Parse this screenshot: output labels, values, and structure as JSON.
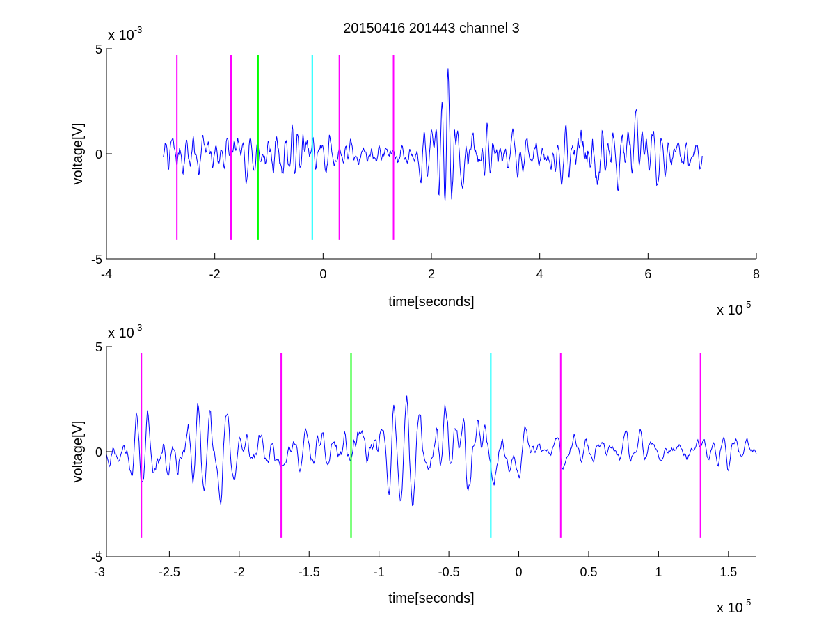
{
  "chart_data": [
    {
      "type": "line",
      "title": "20150416 201443 channel 3",
      "xlabel": "time[seconds]",
      "ylabel": "voltage[V]",
      "x_scale_label": "x 10",
      "x_scale_exponent": "-5",
      "y_scale_label": "x 10",
      "y_scale_exponent": "-3",
      "xlim": [
        -4,
        8
      ],
      "ylim": [
        -5,
        5
      ],
      "xticks": [
        -4,
        -2,
        0,
        2,
        4,
        6,
        8
      ],
      "xtick_labels": [
        "-4",
        "-2",
        "0",
        "2",
        "4",
        "6",
        "8"
      ],
      "yticks": [
        -5,
        0,
        5
      ],
      "ytick_labels": [
        "-5",
        "0",
        "5"
      ],
      "series_color": "#0000ff",
      "signal": {
        "x_start": -2.95,
        "x_end": 7.0,
        "points": 900,
        "seed": 7,
        "envelope": [
          [
            -2.95,
            1.0
          ],
          [
            -2.5,
            1.3
          ],
          [
            -2.0,
            1.1
          ],
          [
            -1.5,
            0.9
          ],
          [
            -1.0,
            1.25
          ],
          [
            -0.5,
            1.5
          ],
          [
            0.0,
            1.0
          ],
          [
            0.5,
            0.7
          ],
          [
            1.0,
            0.65
          ],
          [
            1.5,
            0.8
          ],
          [
            2.0,
            1.2
          ],
          [
            2.3,
            2.6
          ],
          [
            2.6,
            1.6
          ],
          [
            3.0,
            1.3
          ],
          [
            3.5,
            1.0
          ],
          [
            4.0,
            0.8
          ],
          [
            4.5,
            1.1
          ],
          [
            4.9,
            2.8
          ],
          [
            5.2,
            1.8
          ],
          [
            5.6,
            1.4
          ],
          [
            6.0,
            1.2
          ],
          [
            6.5,
            0.9
          ],
          [
            7.0,
            0.8
          ]
        ]
      },
      "markers": [
        {
          "x": -2.7,
          "color": "#ff00ff"
        },
        {
          "x": -1.7,
          "color": "#ff00ff"
        },
        {
          "x": -1.2,
          "color": "#00ff00"
        },
        {
          "x": -0.2,
          "color": "#00ffff"
        },
        {
          "x": 0.3,
          "color": "#ff00ff"
        },
        {
          "x": 1.3,
          "color": "#ff00ff"
        }
      ],
      "marker_range": [
        -4.1,
        4.7
      ]
    },
    {
      "type": "line",
      "xlabel": "time[seconds]",
      "ylabel": "voltage[V]",
      "x_scale_label": "x 10",
      "x_scale_exponent": "-5",
      "y_scale_label": "x 10",
      "y_scale_exponent": "-3",
      "xlim": [
        -2.95,
        1.7
      ],
      "ylim": [
        -5,
        5
      ],
      "xticks": [
        -3,
        -2.5,
        -2,
        -1.5,
        -1,
        -0.5,
        0,
        0.5,
        1,
        1.5
      ],
      "xtick_labels": [
        "-3",
        "-2.5",
        "-2",
        "-1.5",
        "-1",
        "-0.5",
        "0",
        "0.5",
        "1",
        "1.5"
      ],
      "yticks": [
        -5,
        0,
        5
      ],
      "ytick_labels": [
        "-5",
        "0",
        "5"
      ],
      "series_color": "#0000ff",
      "signal": {
        "x_start": -2.95,
        "x_end": 1.7,
        "points": 700,
        "seed": 11,
        "envelope": [
          [
            -2.95,
            0.9
          ],
          [
            -2.7,
            1.6
          ],
          [
            -2.5,
            1.3
          ],
          [
            -2.3,
            2.2
          ],
          [
            -2.1,
            1.8
          ],
          [
            -1.8,
            1.0
          ],
          [
            -1.5,
            0.9
          ],
          [
            -1.2,
            1.6
          ],
          [
            -1.0,
            1.4
          ],
          [
            -0.7,
            1.8
          ],
          [
            -0.4,
            2.4
          ],
          [
            -0.2,
            1.5
          ],
          [
            0.0,
            1.2
          ],
          [
            0.3,
            0.8
          ],
          [
            0.6,
            0.7
          ],
          [
            0.9,
            0.8
          ],
          [
            1.2,
            0.7
          ],
          [
            1.5,
            0.8
          ],
          [
            1.7,
            0.6
          ]
        ]
      },
      "markers": [
        {
          "x": -2.7,
          "color": "#ff00ff"
        },
        {
          "x": -1.7,
          "color": "#ff00ff"
        },
        {
          "x": -1.2,
          "color": "#00ff00"
        },
        {
          "x": -0.2,
          "color": "#00ffff"
        },
        {
          "x": 0.3,
          "color": "#ff00ff"
        },
        {
          "x": 1.3,
          "color": "#ff00ff"
        }
      ],
      "marker_range": [
        -4.1,
        4.7
      ]
    }
  ]
}
